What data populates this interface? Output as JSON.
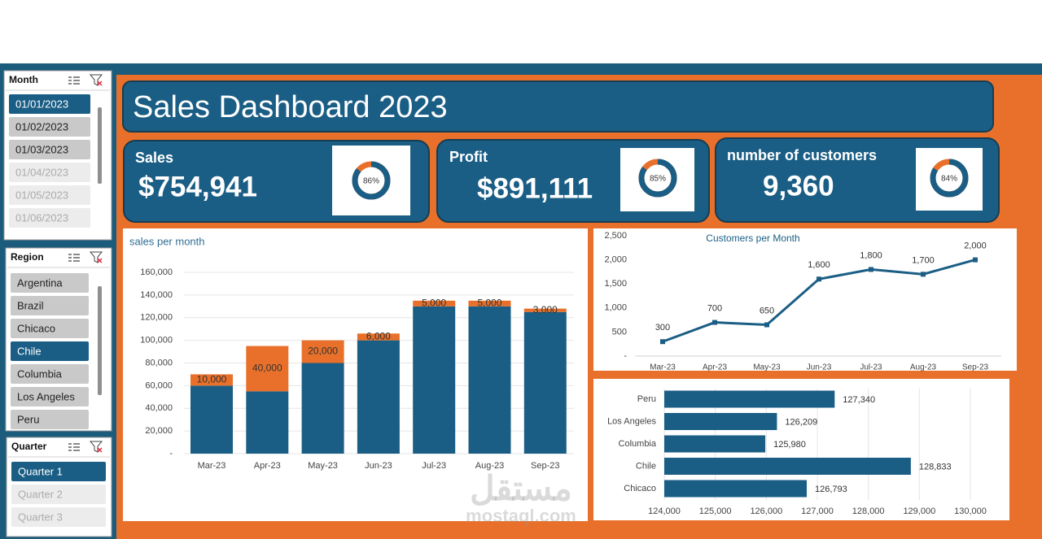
{
  "slicers": [
    {
      "title": "Month",
      "items": [
        {
          "label": "01/01/2023",
          "state": "selected"
        },
        {
          "label": "01/02/2023",
          "state": "available"
        },
        {
          "label": "01/03/2023",
          "state": "available"
        },
        {
          "label": "01/04/2023",
          "state": "unavailable"
        },
        {
          "label": "01/05/2023",
          "state": "unavailable"
        },
        {
          "label": "01/06/2023",
          "state": "unavailable"
        }
      ]
    },
    {
      "title": "Region",
      "items": [
        {
          "label": "Argentina",
          "state": "available"
        },
        {
          "label": "Brazil",
          "state": "available"
        },
        {
          "label": "Chicaco",
          "state": "available"
        },
        {
          "label": "Chile",
          "state": "selected"
        },
        {
          "label": "Columbia",
          "state": "available"
        },
        {
          "label": "Los Angeles",
          "state": "available"
        },
        {
          "label": "Peru",
          "state": "available"
        }
      ]
    },
    {
      "title": "Quarter",
      "items": [
        {
          "label": "Quarter 1",
          "state": "selected"
        },
        {
          "label": "Quarter 2",
          "state": "unavailable"
        },
        {
          "label": "Quarter 3",
          "state": "unavailable"
        }
      ]
    }
  ],
  "header": {
    "title": "Sales Dashboard 2023"
  },
  "kpis": [
    {
      "label": "Sales",
      "value": "$754,941",
      "percent": 86,
      "percent_label": "86%"
    },
    {
      "label": "Profit",
      "value": "$891,111",
      "percent": 85,
      "percent_label": "85%"
    },
    {
      "label": "number of customers",
      "value": "9,360",
      "percent": 84,
      "percent_label": "84%"
    }
  ],
  "chart_data": [
    {
      "type": "bar",
      "stacked": true,
      "title": "sales per month",
      "categories": [
        "Mar-23",
        "Apr-23",
        "May-23",
        "Jun-23",
        "Jul-23",
        "Aug-23",
        "Sep-23"
      ],
      "series": [
        {
          "color": "#1b5e85",
          "values": [
            60000,
            55000,
            80000,
            100000,
            130000,
            130000,
            125000
          ]
        },
        {
          "color": "#e8702a",
          "values": [
            10000,
            40000,
            20000,
            6000,
            5000,
            5000,
            3000
          ],
          "value_labels": [
            "10,000",
            "40,000",
            "20,000",
            "6,000",
            "5,000",
            "5,000",
            "3,000"
          ]
        }
      ],
      "ylim": [
        0,
        160000
      ],
      "yticks": [
        {
          "value": 0,
          "label": "-"
        },
        {
          "value": 20000,
          "label": "20,000"
        },
        {
          "value": 40000,
          "label": "40,000"
        },
        {
          "value": 60000,
          "label": "60,000"
        },
        {
          "value": 80000,
          "label": "80,000"
        },
        {
          "value": 100000,
          "label": "100,000"
        },
        {
          "value": 120000,
          "label": "120,000"
        },
        {
          "value": 140000,
          "label": "140,000"
        },
        {
          "value": 160000,
          "label": "160,000"
        }
      ],
      "grid": true
    },
    {
      "type": "line",
      "title": "Customers per Month",
      "categories": [
        "Mar-23",
        "Apr-23",
        "May-23",
        "Jun-23",
        "Jul-23",
        "Aug-23",
        "Sep-23"
      ],
      "values": [
        300,
        700,
        650,
        1600,
        1800,
        1700,
        2000
      ],
      "value_labels": [
        "300",
        "700",
        "650",
        "1,600",
        "1,800",
        "1,700",
        "2,000"
      ],
      "color": "#1b5e85",
      "ylim": [
        0,
        2500
      ],
      "yticks": [
        {
          "value": 0,
          "label": "-"
        },
        500,
        {
          "value": 1000,
          "label": "1,000"
        },
        {
          "value": 1500,
          "label": "1,500"
        },
        {
          "value": 2000,
          "label": "2,000"
        },
        {
          "value": 2500,
          "label": "2,500"
        }
      ],
      "grid": false
    },
    {
      "type": "hbar",
      "categories": [
        "Peru",
        "Los Angeles",
        "Columbia",
        "Chile",
        "Chicaco"
      ],
      "values": [
        127340,
        126209,
        125980,
        128833,
        126793
      ],
      "value_labels": [
        "127,340",
        "126,209",
        "125,980",
        "128,833",
        "126,793"
      ],
      "color": "#1b5e85",
      "xlim": [
        124000,
        130000
      ],
      "xticks": [
        {
          "value": 124000,
          "label": "124,000"
        },
        {
          "value": 125000,
          "label": "125,000"
        },
        {
          "value": 126000,
          "label": "126,000"
        },
        {
          "value": 127000,
          "label": "127,000"
        },
        {
          "value": 128000,
          "label": "128,000"
        },
        {
          "value": 129000,
          "label": "129,000"
        },
        {
          "value": 130000,
          "label": "130,000"
        }
      ],
      "grid": true
    }
  ],
  "watermark": {
    "arabic": "مستقل",
    "latin": "mostaql.com"
  }
}
